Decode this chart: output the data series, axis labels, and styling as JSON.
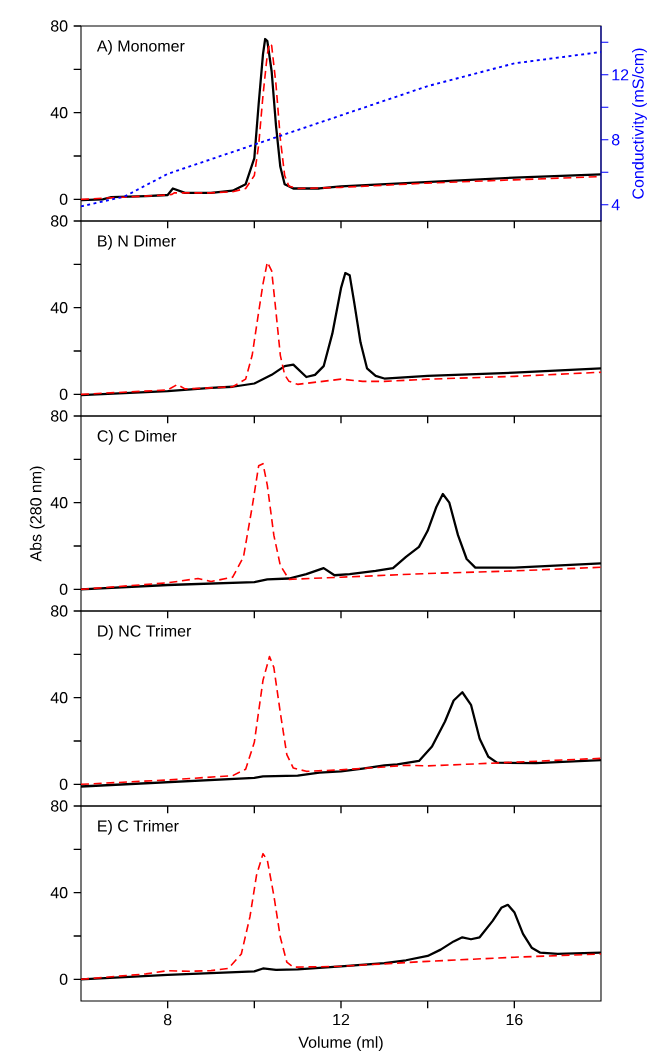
{
  "chart_data": [
    {
      "type": "line",
      "title": "A) Monomer",
      "y2label": "Conductivity (mS/cm)",
      "xlim": [
        6,
        18
      ],
      "xticks": [
        8,
        12,
        16
      ],
      "ylim": [
        -10,
        80
      ],
      "yticks": [
        0,
        40,
        80
      ],
      "y2lim": [
        3,
        15
      ],
      "y2ticks": [
        4,
        {
          "value": 6,
          "label": null
        },
        8,
        {
          "value": 10,
          "label": null
        },
        12,
        {
          "value": 14,
          "label": null
        }
      ],
      "tick_labels": "y",
      "series": [
        {
          "color": "#000000",
          "line_style": "solid",
          "x": [
            6,
            6.5,
            6.7,
            7.5,
            8,
            8.12,
            8.4,
            9,
            9.5,
            9.8,
            10,
            10.1,
            10.2,
            10.25,
            10.3,
            10.4,
            10.5,
            10.6,
            10.7,
            10.9,
            11.5,
            12,
            14,
            16,
            18
          ],
          "values": [
            -0.4,
            0,
            1,
            1.5,
            2,
            5,
            3,
            3,
            4,
            7,
            19,
            44,
            67,
            74,
            73,
            59,
            34,
            15,
            7,
            5,
            5,
            6,
            8,
            10,
            11.5
          ]
        },
        {
          "color": "#ff0000",
          "line_style": "dashed",
          "x": [
            6,
            7,
            8,
            8.1,
            8.15,
            9,
            9.5,
            9.8,
            10,
            10.1,
            10.2,
            10.3,
            10.35,
            10.4,
            10.5,
            10.6,
            10.7,
            10.8,
            11,
            12,
            14,
            16,
            18
          ],
          "values": [
            0,
            1,
            2,
            2.3,
            3,
            3,
            3.5,
            5,
            11,
            25,
            48,
            67,
            72,
            71,
            53,
            28,
            11,
            6,
            5,
            5.5,
            7.5,
            9,
            10.5
          ]
        },
        {
          "color": "#0000ff",
          "line_style": "dotted",
          "axis": "y2",
          "x": [
            6,
            7,
            8,
            10,
            12,
            14,
            16,
            18
          ],
          "values": [
            3.9,
            4.5,
            5.9,
            7.7,
            9.5,
            11.3,
            12.7,
            13.4
          ]
        }
      ]
    },
    {
      "type": "line",
      "title": "B) N Dimer",
      "xlim": [
        6,
        18
      ],
      "xticks": [
        8,
        12,
        16
      ],
      "ylim": [
        -10,
        80
      ],
      "yticks": [
        0,
        40,
        80
      ],
      "tick_labels": "y",
      "series": [
        {
          "color": "#000000",
          "line_style": "solid",
          "x": [
            6,
            8,
            9,
            9.5,
            10,
            10.4,
            10.7,
            10.9,
            11.2,
            11.4,
            11.6,
            11.8,
            12,
            12.1,
            12.2,
            12.3,
            12.45,
            12.6,
            12.8,
            13,
            14,
            16,
            18
          ],
          "values": [
            -0.4,
            1.5,
            3,
            3.5,
            5,
            9,
            13,
            13.7,
            8,
            9,
            13,
            28,
            49,
            56,
            55,
            43,
            24,
            12,
            8.5,
            7.3,
            8.5,
            10,
            12
          ]
        },
        {
          "color": "#ff0000",
          "line_style": "dashed",
          "x": [
            6,
            8,
            8.22,
            8.4,
            9,
            9.5,
            9.8,
            9.95,
            10.1,
            10.2,
            10.3,
            10.4,
            10.5,
            10.6,
            10.7,
            10.8,
            11,
            12,
            12.5,
            13,
            14,
            16,
            18
          ],
          "values": [
            0,
            2,
            4.5,
            2.5,
            3,
            3.5,
            7,
            18,
            38,
            51,
            61,
            57,
            38,
            18,
            9,
            6,
            4.6,
            7,
            6,
            6,
            7,
            8.3,
            10.2
          ]
        }
      ]
    },
    {
      "type": "line",
      "title": "C) C Dimer",
      "ylabel": "Abs (280 nm)",
      "xlim": [
        6,
        18
      ],
      "xticks": [
        8,
        12,
        16
      ],
      "ylim": [
        -10,
        80
      ],
      "yticks": [
        0,
        40,
        80
      ],
      "tick_labels": "y",
      "series": [
        {
          "color": "#000000",
          "line_style": "solid",
          "x": [
            6,
            8,
            10,
            10.3,
            10.8,
            11.2,
            11.6,
            11.85,
            12.2,
            12.8,
            13.2,
            13.5,
            13.8,
            14,
            14.2,
            14.35,
            14.5,
            14.7,
            14.9,
            15.1,
            16,
            18
          ],
          "values": [
            0,
            2,
            3.3,
            4.6,
            5,
            7,
            9.8,
            6.5,
            7,
            8.5,
            9.8,
            15,
            19.6,
            27,
            38,
            44,
            40,
            25,
            14,
            10,
            10,
            12
          ]
        },
        {
          "color": "#ff0000",
          "line_style": "dashed",
          "x": [
            6,
            8,
            8.7,
            9,
            9.5,
            9.75,
            9.95,
            10.1,
            10.2,
            10.3,
            10.45,
            10.6,
            10.8,
            12,
            14,
            16,
            18
          ],
          "values": [
            0,
            3,
            5,
            3.6,
            5.6,
            15,
            38,
            57,
            58,
            48,
            25,
            11,
            4.6,
            5.6,
            7.3,
            8.5,
            10.2
          ]
        }
      ]
    },
    {
      "type": "line",
      "title": "D) NC Trimer",
      "xlim": [
        6,
        18
      ],
      "xticks": [
        8,
        12,
        16
      ],
      "ylim": [
        -10,
        80
      ],
      "yticks": [
        0,
        40,
        80
      ],
      "tick_labels": "y",
      "series": [
        {
          "color": "#000000",
          "line_style": "solid",
          "x": [
            6,
            8,
            10,
            10.2,
            11,
            11.5,
            12,
            12.5,
            13,
            13.3,
            13.8,
            14.1,
            14.4,
            14.6,
            14.8,
            15,
            15.2,
            15.4,
            15.6,
            16.5,
            18
          ],
          "values": [
            -1,
            1,
            3,
            3.7,
            4,
            5.4,
            6,
            7.3,
            8.8,
            9.2,
            10.8,
            17.5,
            29,
            38.7,
            42.5,
            36.7,
            21,
            12.7,
            10,
            9.8,
            11.2
          ]
        },
        {
          "color": "#ff0000",
          "line_style": "dashed",
          "x": [
            6,
            8,
            9.5,
            9.8,
            10,
            10.2,
            10.35,
            10.45,
            10.6,
            10.75,
            10.9,
            11.2,
            12,
            13,
            13.5,
            14,
            16,
            18
          ],
          "values": [
            0,
            2,
            4,
            7,
            19.4,
            48,
            59,
            54,
            33,
            13.7,
            7.5,
            6,
            6.7,
            8,
            8.8,
            8.5,
            10.2,
            12
          ]
        }
      ]
    },
    {
      "type": "line",
      "title": "E) C Trimer",
      "xlabel": "Volume (ml)",
      "xlim": [
        6,
        18
      ],
      "xticks": [
        8,
        12,
        16
      ],
      "ylim": [
        -10,
        80
      ],
      "yticks": [
        0,
        40,
        80
      ],
      "series": [
        {
          "color": "#000000",
          "line_style": "solid",
          "x": [
            6,
            8,
            10,
            10.2,
            10.5,
            11,
            12,
            13,
            13.5,
            14,
            14.3,
            14.6,
            14.8,
            15,
            15.2,
            15.5,
            15.7,
            15.85,
            16,
            16.2,
            16.4,
            16.6,
            17,
            18
          ],
          "values": [
            0,
            2,
            3.7,
            5,
            4.4,
            4.6,
            6,
            7.5,
            8.8,
            10.8,
            13.7,
            17.5,
            19.4,
            18.5,
            19.4,
            27,
            33,
            34.4,
            31,
            21,
            14.6,
            12.3,
            11.7,
            12.3
          ]
        },
        {
          "color": "#ff0000",
          "line_style": "dashed",
          "x": [
            6,
            7.5,
            8,
            8.5,
            9,
            9.4,
            9.7,
            9.9,
            10.05,
            10.2,
            10.3,
            10.45,
            10.6,
            10.75,
            10.9,
            12,
            14,
            16,
            18
          ],
          "values": [
            0,
            2.5,
            4,
            3.7,
            4,
            5,
            11.7,
            29,
            48,
            58,
            55,
            38.7,
            19.4,
            7.9,
            5.6,
            6,
            8.3,
            10.2,
            11.7
          ]
        }
      ]
    }
  ]
}
